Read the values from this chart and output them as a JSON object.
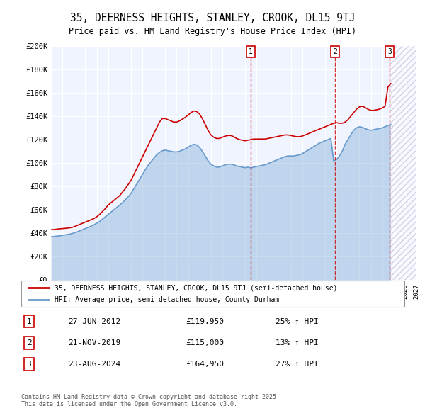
{
  "title": "35, DEERNESS HEIGHTS, STANLEY, CROOK, DL15 9TJ",
  "subtitle": "Price paid vs. HM Land Registry's House Price Index (HPI)",
  "ylabel": "",
  "xlabel": "",
  "xlim": [
    1995,
    2027
  ],
  "ylim": [
    0,
    200000
  ],
  "yticks": [
    0,
    20000,
    40000,
    60000,
    80000,
    100000,
    120000,
    140000,
    160000,
    180000,
    200000
  ],
  "ytick_labels": [
    "£0",
    "£20K",
    "£40K",
    "£60K",
    "£80K",
    "£100K",
    "£120K",
    "£140K",
    "£160K",
    "£180K",
    "£200K"
  ],
  "background_color": "#ffffff",
  "plot_bg_color": "#f0f4ff",
  "grid_color": "#ffffff",
  "red_line_color": "#cc0000",
  "blue_line_color": "#6699cc",
  "transactions": [
    {
      "date_num": 2012.49,
      "price": 119950,
      "label": "1"
    },
    {
      "date_num": 2019.89,
      "price": 115000,
      "label": "2"
    },
    {
      "date_num": 2024.65,
      "price": 164950,
      "label": "3"
    }
  ],
  "transaction_table": [
    {
      "num": "1",
      "date": "27-JUN-2012",
      "price": "£119,950",
      "change": "25% ↑ HPI"
    },
    {
      "num": "2",
      "date": "21-NOV-2019",
      "price": "£115,000",
      "change": "13% ↑ HPI"
    },
    {
      "num": "3",
      "date": "23-AUG-2024",
      "price": "£164,950",
      "change": "27% ↑ HPI"
    }
  ],
  "legend_line1": "35, DEERNESS HEIGHTS, STANLEY, CROOK, DL15 9TJ (semi-detached house)",
  "legend_line2": "HPI: Average price, semi-detached house, County Durham",
  "copyright": "Contains HM Land Registry data © Crown copyright and database right 2025.\nThis data is licensed under the Open Government Licence v3.0.",
  "hpi_region_color": "#cce0ff",
  "hatch_color": "#aaaacc",
  "red_data": {
    "years": [
      1995.0,
      1995.25,
      1995.5,
      1995.75,
      1996.0,
      1996.25,
      1996.5,
      1996.75,
      1997.0,
      1997.25,
      1997.5,
      1997.75,
      1998.0,
      1998.25,
      1998.5,
      1998.75,
      1999.0,
      1999.25,
      1999.5,
      1999.75,
      2000.0,
      2000.25,
      2000.5,
      2000.75,
      2001.0,
      2001.25,
      2001.5,
      2001.75,
      2002.0,
      2002.25,
      2002.5,
      2002.75,
      2003.0,
      2003.25,
      2003.5,
      2003.75,
      2004.0,
      2004.25,
      2004.5,
      2004.75,
      2005.0,
      2005.25,
      2005.5,
      2005.75,
      2006.0,
      2006.25,
      2006.5,
      2006.75,
      2007.0,
      2007.25,
      2007.5,
      2007.75,
      2008.0,
      2008.25,
      2008.5,
      2008.75,
      2009.0,
      2009.25,
      2009.5,
      2009.75,
      2010.0,
      2010.25,
      2010.5,
      2010.75,
      2011.0,
      2011.25,
      2011.5,
      2011.75,
      2012.0,
      2012.25,
      2012.5,
      2012.75,
      2013.0,
      2013.25,
      2013.5,
      2013.75,
      2014.0,
      2014.25,
      2014.5,
      2014.75,
      2015.0,
      2015.25,
      2015.5,
      2015.75,
      2016.0,
      2016.25,
      2016.5,
      2016.75,
      2017.0,
      2017.25,
      2017.5,
      2017.75,
      2018.0,
      2018.25,
      2018.5,
      2018.75,
      2019.0,
      2019.25,
      2019.5,
      2019.75,
      2020.0,
      2020.25,
      2020.5,
      2020.75,
      2021.0,
      2021.25,
      2021.5,
      2021.75,
      2022.0,
      2022.25,
      2022.5,
      2022.75,
      2023.0,
      2023.25,
      2023.5,
      2023.75,
      2024.0,
      2024.25,
      2024.5,
      2024.75
    ],
    "values": [
      43000,
      43200,
      43500,
      43800,
      44000,
      44200,
      44500,
      44800,
      45500,
      46500,
      47500,
      48500,
      49500,
      50500,
      51500,
      52500,
      54000,
      56000,
      58500,
      61000,
      64000,
      66000,
      68000,
      70000,
      72000,
      75000,
      78000,
      81500,
      85000,
      90000,
      95000,
      100000,
      105000,
      110000,
      115000,
      120000,
      125000,
      130000,
      135000,
      138000,
      138000,
      137000,
      136000,
      135000,
      135000,
      136000,
      137500,
      139000,
      141000,
      143000,
      144500,
      144000,
      142000,
      138000,
      133000,
      128000,
      124000,
      122000,
      121000,
      121000,
      122000,
      123000,
      123500,
      123500,
      122500,
      121000,
      120000,
      119500,
      119000,
      119500,
      120000,
      120500,
      120500,
      120500,
      120500,
      120500,
      121000,
      121500,
      122000,
      122500,
      123000,
      123500,
      124000,
      124000,
      123500,
      123000,
      122500,
      122500,
      123000,
      124000,
      125000,
      126000,
      127000,
      128000,
      129000,
      130000,
      131000,
      132000,
      133000,
      134000,
      134500,
      134000,
      134000,
      135000,
      137000,
      140000,
      143000,
      146000,
      148000,
      148500,
      147500,
      146000,
      145000,
      145000,
      145500,
      146000,
      147000,
      148500,
      164950,
      168000
    ]
  },
  "blue_data": {
    "years": [
      1995.0,
      1995.25,
      1995.5,
      1995.75,
      1996.0,
      1996.25,
      1996.5,
      1996.75,
      1997.0,
      1997.25,
      1997.5,
      1997.75,
      1998.0,
      1998.25,
      1998.5,
      1998.75,
      1999.0,
      1999.25,
      1999.5,
      1999.75,
      2000.0,
      2000.25,
      2000.5,
      2000.75,
      2001.0,
      2001.25,
      2001.5,
      2001.75,
      2002.0,
      2002.25,
      2002.5,
      2002.75,
      2003.0,
      2003.25,
      2003.5,
      2003.75,
      2004.0,
      2004.25,
      2004.5,
      2004.75,
      2005.0,
      2005.25,
      2005.5,
      2005.75,
      2006.0,
      2006.25,
      2006.5,
      2006.75,
      2007.0,
      2007.25,
      2007.5,
      2007.75,
      2008.0,
      2008.25,
      2008.5,
      2008.75,
      2009.0,
      2009.25,
      2009.5,
      2009.75,
      2010.0,
      2010.25,
      2010.5,
      2010.75,
      2011.0,
      2011.25,
      2011.5,
      2011.75,
      2012.0,
      2012.25,
      2012.5,
      2012.75,
      2013.0,
      2013.25,
      2013.5,
      2013.75,
      2014.0,
      2014.25,
      2014.5,
      2014.75,
      2015.0,
      2015.25,
      2015.5,
      2015.75,
      2016.0,
      2016.25,
      2016.5,
      2016.75,
      2017.0,
      2017.25,
      2017.5,
      2017.75,
      2018.0,
      2018.25,
      2018.5,
      2018.75,
      2019.0,
      2019.25,
      2019.5,
      2019.75,
      2020.0,
      2020.25,
      2020.5,
      2020.75,
      2021.0,
      2021.25,
      2021.5,
      2021.75,
      2022.0,
      2022.25,
      2022.5,
      2022.75,
      2023.0,
      2023.25,
      2023.5,
      2023.75,
      2024.0,
      2024.25,
      2024.5,
      2024.75
    ],
    "values": [
      37000,
      37200,
      37500,
      37800,
      38200,
      38600,
      39000,
      39500,
      40200,
      41000,
      42000,
      43000,
      44000,
      45000,
      46000,
      47200,
      48500,
      50000,
      52000,
      54000,
      56000,
      58000,
      60000,
      62000,
      64000,
      66000,
      68500,
      71000,
      74000,
      78000,
      82000,
      86000,
      90000,
      94000,
      98000,
      101000,
      104000,
      107000,
      109000,
      110500,
      111000,
      110500,
      110000,
      109500,
      109500,
      110000,
      111000,
      112000,
      113500,
      115000,
      116000,
      115500,
      113500,
      110000,
      106000,
      102000,
      99000,
      97500,
      96500,
      96500,
      97500,
      98500,
      99000,
      99000,
      98500,
      97500,
      97000,
      96500,
      96000,
      96500,
      95800,
      96500,
      97000,
      97500,
      98000,
      98500,
      99500,
      100500,
      101500,
      102500,
      103500,
      104500,
      105500,
      106000,
      106000,
      106000,
      106500,
      107000,
      108000,
      109500,
      111000,
      112500,
      114000,
      115500,
      117000,
      118000,
      119000,
      120000,
      121000,
      101800,
      103000,
      106000,
      110000,
      116000,
      120000,
      124000,
      128000,
      130000,
      131000,
      130500,
      129500,
      128500,
      128000,
      128500,
      129000,
      129500,
      130000,
      131000,
      132000,
      133000
    ]
  }
}
